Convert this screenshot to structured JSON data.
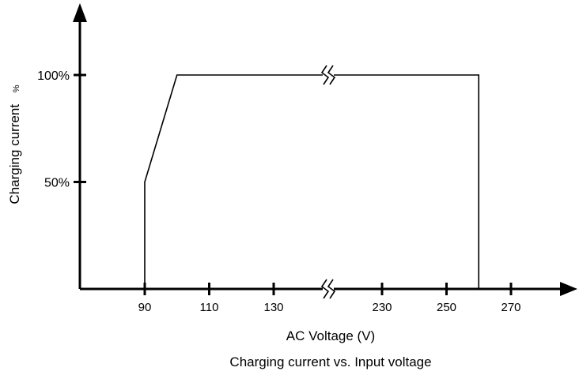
{
  "chart_data": {
    "type": "line",
    "title": "Charging current vs. Input voltage",
    "xlabel": "AC Voltage (V)",
    "ylabel": "Charging current",
    "ylabel_unit": "%",
    "x_ticks": [
      "90",
      "110",
      "130",
      "230",
      "250",
      "270"
    ],
    "y_ticks": [
      "50%",
      "100%"
    ],
    "x_axis_break": "between 130 and 230",
    "series": [
      {
        "points": [
          {
            "x": 90,
            "y": 0
          },
          {
            "x": 90,
            "y": 50
          },
          {
            "x": 100,
            "y": 100
          },
          {
            "x": 260,
            "y": 100
          },
          {
            "x": 260,
            "y": 0
          }
        ]
      }
    ],
    "colors": {
      "line": "#000000",
      "background": "#ffffff"
    },
    "grid": false
  }
}
